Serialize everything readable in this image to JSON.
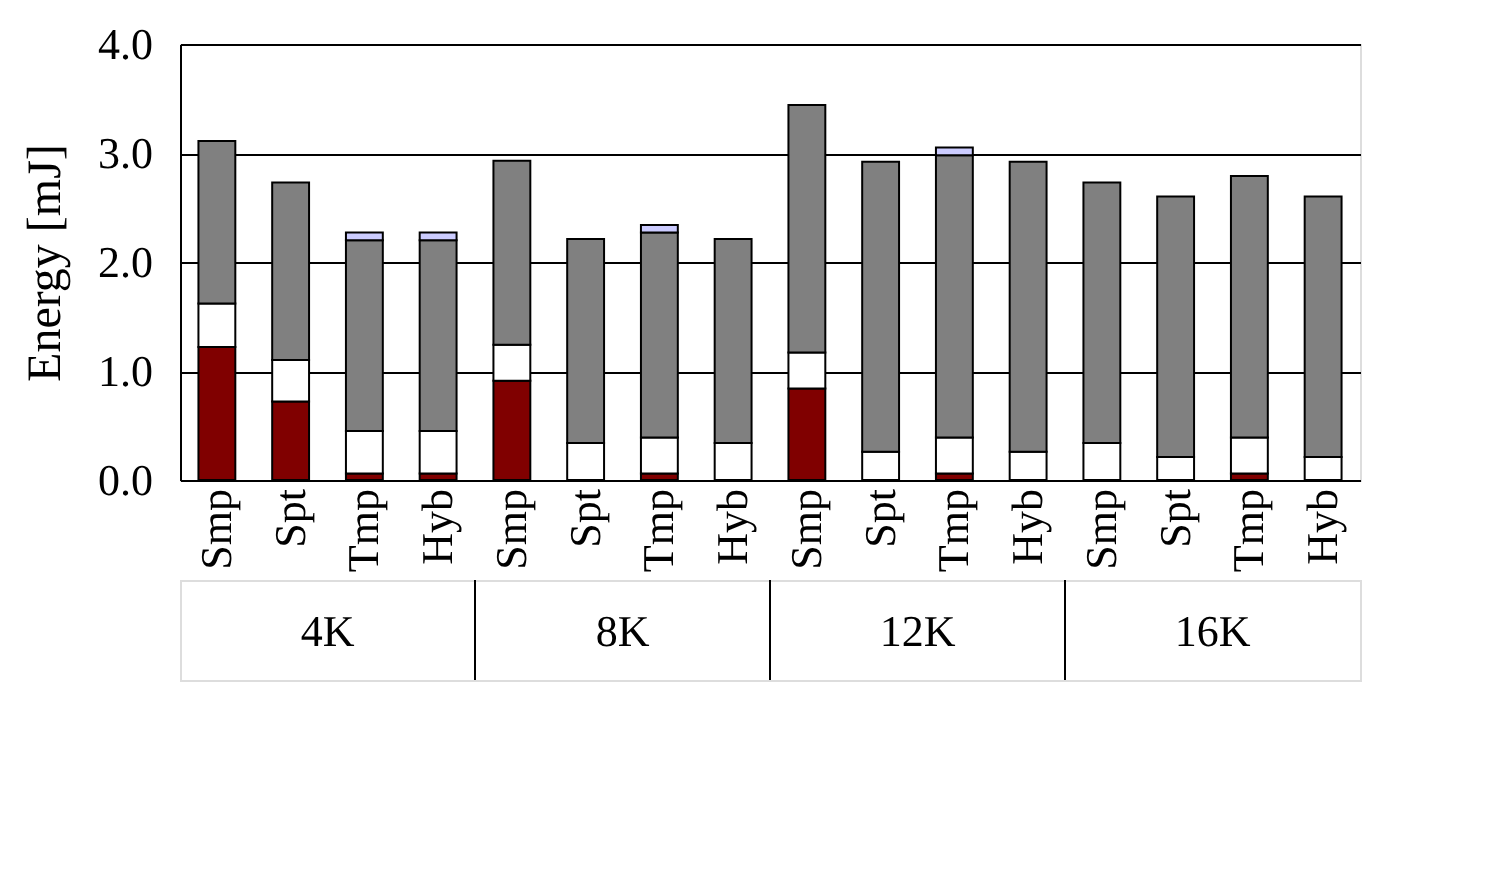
{
  "chart_data": {
    "type": "bar",
    "stacked": true,
    "ylabel": "Energy [mJ]",
    "categories": [
      "Smp",
      "Spt",
      "Tmp",
      "Hyb",
      "Smp",
      "Spt",
      "Tmp",
      "Hyb",
      "Smp",
      "Spt",
      "Tmp",
      "Hyb",
      "Smp",
      "Spt",
      "Tmp",
      "Hyb"
    ],
    "series": [
      {
        "color": "#800000",
        "values": [
          1.22,
          0.72,
          0.06,
          0.06,
          0.91,
          null,
          0.06,
          null,
          0.84,
          null,
          0.06,
          null,
          null,
          null,
          0.06,
          null
        ]
      },
      {
        "color": "#ffffff",
        "values": [
          0.4,
          0.38,
          0.39,
          0.39,
          0.33,
          0.34,
          0.33,
          0.34,
          0.33,
          0.26,
          0.33,
          0.26,
          0.34,
          0.21,
          0.33,
          0.21
        ]
      },
      {
        "color": "#808080",
        "values": [
          1.49,
          1.63,
          1.75,
          1.75,
          1.69,
          1.87,
          1.88,
          1.87,
          2.27,
          2.66,
          2.59,
          2.66,
          2.39,
          2.39,
          2.4,
          2.39
        ]
      },
      {
        "color": "#ccccff",
        "values": [
          null,
          null,
          0.07,
          0.07,
          null,
          null,
          0.07,
          null,
          null,
          null,
          0.07,
          null,
          null,
          null,
          null,
          null
        ]
      }
    ],
    "ylim": [
      0,
      4
    ],
    "yticks": [
      {
        "value": 0,
        "label": "0.0"
      },
      {
        "value": 1,
        "label": "1.0"
      },
      {
        "value": 2,
        "label": "2.0"
      },
      {
        "value": 3,
        "label": "3.0"
      },
      {
        "value": 4,
        "label": "4.0"
      }
    ],
    "grid": "y",
    "legend": false,
    "annotations": [
      "4K",
      "8K",
      "12K",
      "16K"
    ]
  }
}
